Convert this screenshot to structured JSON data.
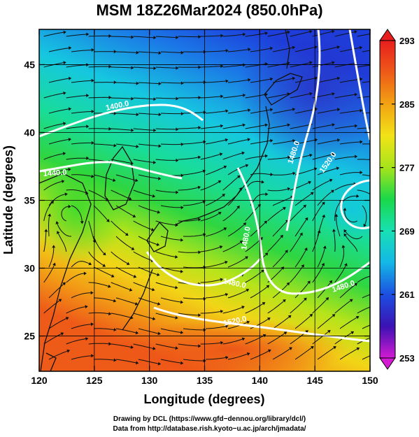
{
  "title": "MSM 18Z26Mar2024 (850.0hPa)",
  "map": {
    "xlabel": "Longitude (degrees)",
    "ylabel": "Latitude  (degrees)",
    "x_ticks": [
      "120",
      "125",
      "130",
      "135",
      "140",
      "145",
      "150"
    ],
    "y_ticks": [
      "25",
      "30",
      "35",
      "40",
      "45"
    ],
    "lon_range": [
      120,
      150
    ],
    "lat_range": [
      22.4,
      47.6
    ],
    "grid": true
  },
  "colorbar": {
    "ticks": [
      "293",
      "285",
      "277",
      "269",
      "261",
      "253"
    ],
    "range": [
      253,
      293
    ],
    "colors": [
      "#d21bd2",
      "#3b12b3",
      "#1c4fe0",
      "#14b7e6",
      "#18e0b4",
      "#19d84a",
      "#a6e41a",
      "#f2e317",
      "#f2a314",
      "#ee5a18",
      "#e81e1e"
    ]
  },
  "contour_labels": [
    {
      "text": "1400.0"
    },
    {
      "text": "1440.0"
    },
    {
      "text": "1480.0"
    },
    {
      "text": "1520.0"
    },
    {
      "text": "1480.0"
    },
    {
      "text": "1480.0"
    },
    {
      "text": "1520.0"
    },
    {
      "text": "1480.0"
    }
  ],
  "credits": {
    "line1": "Drawing by DCL (https://www.gfd−dennou.org/library/dcl/)",
    "line2": "Data from http://database.rish.kyoto−u.ac.jp/arch/jmadata/"
  }
}
